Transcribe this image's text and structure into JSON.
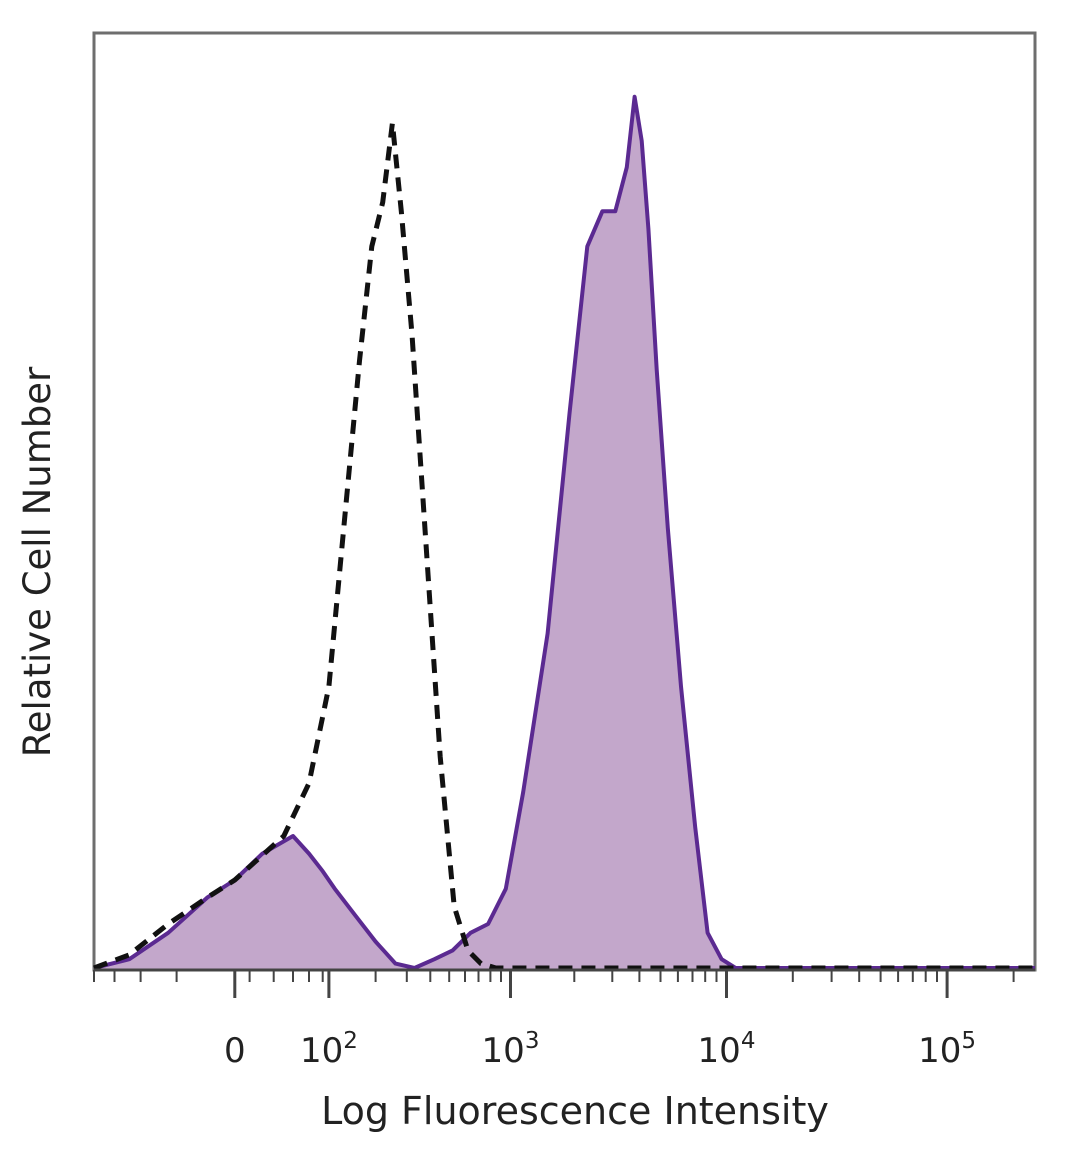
{
  "chart_data": {
    "type": "area",
    "title": "",
    "xlabel": "Log Fluorescence Intensity",
    "ylabel": "Relative Cell Number",
    "x_scale": "biexponential",
    "xlim": [
      -200,
      250000
    ],
    "ylim": [
      0,
      100
    ],
    "grid": false,
    "legend": "none",
    "x_ticks": [
      {
        "value": 0,
        "label": "0",
        "exp": ""
      },
      {
        "value": 100,
        "label": "10",
        "exp": "2"
      },
      {
        "value": 1000,
        "label": "10",
        "exp": "3"
      },
      {
        "value": 10000,
        "label": "10",
        "exp": "4"
      },
      {
        "value": 100000,
        "label": "10",
        "exp": "5"
      }
    ],
    "series": [
      {
        "style": "filled-solid",
        "fill": "#c3a7cb",
        "stroke": "#5b2a91",
        "x": [
          -200,
          -120,
          -60,
          -20,
          0,
          20,
          50,
          70,
          90,
          110,
          150,
          200,
          260,
          330,
          420,
          520,
          640,
          780,
          950,
          1150,
          1500,
          1900,
          2300,
          2700,
          3100,
          3500,
          3800,
          4100,
          4400,
          4800,
          5400,
          6200,
          7200,
          8200,
          9500,
          11000,
          13000,
          20000,
          50000,
          100000,
          250000
        ],
        "y": [
          0,
          1,
          4,
          8,
          10,
          13,
          15,
          13,
          11,
          9,
          6,
          3,
          0.5,
          0,
          1,
          2,
          4,
          5,
          9,
          20,
          38,
          63,
          82,
          86,
          86,
          91,
          99,
          94,
          84,
          68,
          50,
          32,
          16,
          4,
          1,
          0,
          0,
          0,
          0,
          0,
          0
        ]
      },
      {
        "style": "dashed",
        "stroke": "#111111",
        "x": [
          -200,
          -120,
          -60,
          -20,
          0,
          40,
          70,
          100,
          130,
          160,
          190,
          220,
          250,
          280,
          320,
          380,
          450,
          530,
          620,
          720,
          850,
          1000,
          2000,
          10000,
          100000,
          250000
        ],
        "y": [
          0,
          1.5,
          5,
          8,
          10,
          15,
          21,
          32,
          52,
          69,
          82,
          87,
          96,
          86,
          72,
          48,
          24,
          7,
          2,
          0.5,
          0,
          0,
          0,
          0,
          0,
          0
        ]
      }
    ]
  }
}
